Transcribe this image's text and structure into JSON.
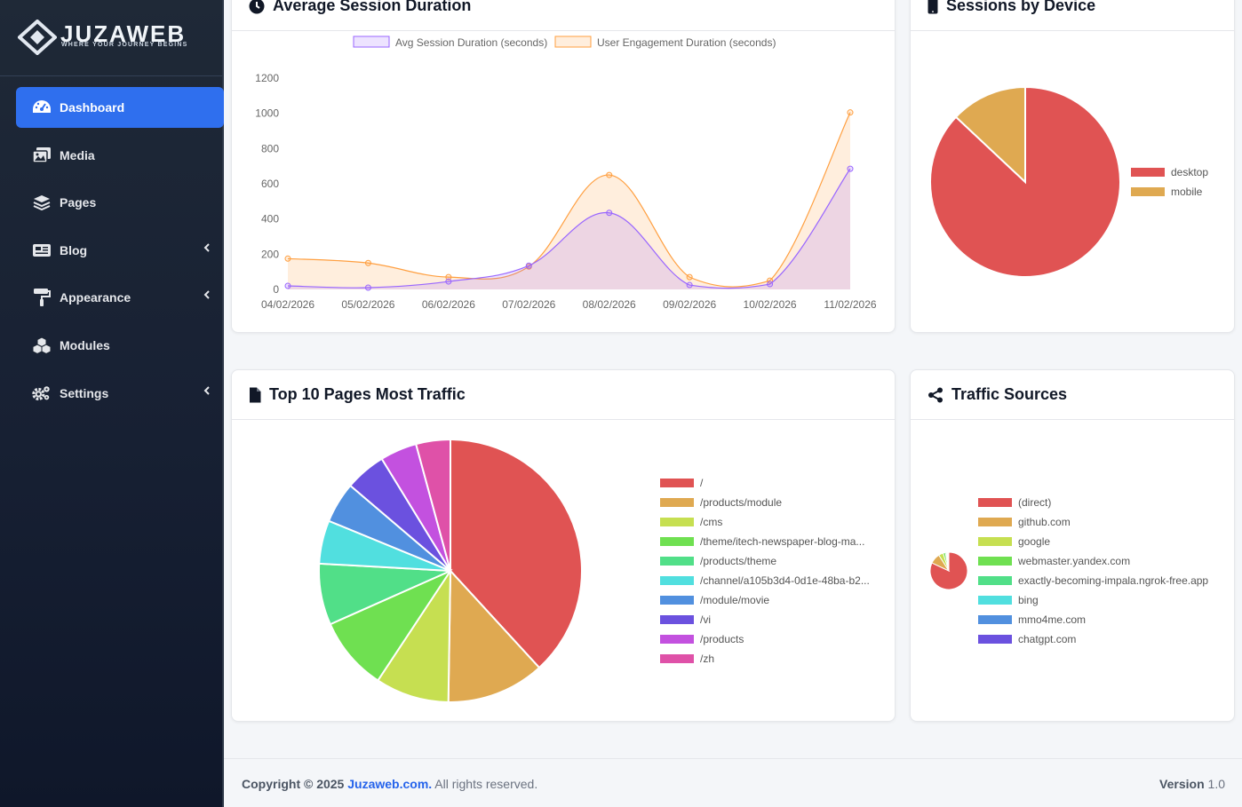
{
  "brand": {
    "name": "JUZAWEB",
    "tagline": "WHERE YOUR JOURNEY BEGINS"
  },
  "sidebar": {
    "items": [
      {
        "label": "Dashboard",
        "icon": "dashboard-icon",
        "active": true,
        "has_children": false
      },
      {
        "label": "Media",
        "icon": "media-icon",
        "active": false,
        "has_children": false
      },
      {
        "label": "Pages",
        "icon": "layers-icon",
        "active": false,
        "has_children": false
      },
      {
        "label": "Blog",
        "icon": "newspaper-icon",
        "active": false,
        "has_children": true
      },
      {
        "label": "Appearance",
        "icon": "paint-roller-icon",
        "active": false,
        "has_children": true
      },
      {
        "label": "Modules",
        "icon": "cubes-icon",
        "active": false,
        "has_children": false
      },
      {
        "label": "Settings",
        "icon": "gears-icon",
        "active": false,
        "has_children": true
      }
    ]
  },
  "cards": {
    "session": {
      "title": "Average Session Duration",
      "icon": "clock-icon"
    },
    "device": {
      "title": "Sessions by Device",
      "icon": "mobile-icon"
    },
    "top_pages": {
      "title": "Top 10 Pages Most Traffic",
      "icon": "file-icon"
    },
    "sources": {
      "title": "Traffic Sources",
      "icon": "share-icon"
    }
  },
  "colors": {
    "accent": "#2f6fee",
    "purple": "#9966ff",
    "orange": "#ff9f40",
    "pie": [
      "#e05353",
      "#dfa951",
      "#c6df51",
      "#6fe051",
      "#51df88",
      "#51dfdf",
      "#5190df",
      "#6b51df",
      "#c351df",
      "#df51a8"
    ]
  },
  "chart_data": [
    {
      "type": "area",
      "title": "Average Session Duration",
      "categories": [
        "04/02/2026",
        "05/02/2026",
        "06/02/2026",
        "07/02/2026",
        "08/02/2026",
        "09/02/2026",
        "10/02/2026",
        "11/02/2026"
      ],
      "series": [
        {
          "name": "Avg Session Duration (seconds)",
          "values": [
            20,
            10,
            45,
            135,
            435,
            25,
            30,
            685
          ]
        },
        {
          "name": "User Engagement Duration (seconds)",
          "values": [
            175,
            150,
            70,
            130,
            650,
            70,
            50,
            1005
          ]
        }
      ],
      "ylim": [
        0,
        1200
      ],
      "yticks": [
        "1200",
        "1000",
        "800",
        "600",
        "400",
        "200",
        "0"
      ],
      "legend": "top"
    },
    {
      "type": "pie",
      "title": "Sessions by Device",
      "labels": [
        "desktop",
        "mobile"
      ],
      "values": [
        87,
        13
      ],
      "legend": "right"
    },
    {
      "type": "pie",
      "title": "Top 10 Pages Most Traffic",
      "labels": [
        "/",
        "/products/module",
        "/cms",
        "/theme/itech-newspaper-blog-ma...",
        "/products/theme",
        "/channel/a105b3d4-0d1e-48ba-b2...",
        "/module/movie",
        "/vi",
        "/products",
        "/zh"
      ],
      "values": [
        38,
        12,
        9,
        9,
        7.5,
        5.3,
        5,
        5,
        4.5,
        4.2
      ],
      "legend": "right"
    },
    {
      "type": "pie",
      "title": "Traffic Sources",
      "labels": [
        "(direct)",
        "github.com",
        "google",
        "webmaster.yandex.com",
        "exactly-becoming-impala.ngrok-free.app",
        "bing",
        "mmo4me.com",
        "chatgpt.com"
      ],
      "values": [
        82,
        9,
        4,
        2,
        1,
        0.8,
        0.7,
        0.5
      ],
      "legend": "right"
    }
  ],
  "footer": {
    "copyright_prefix": "Copyright © 2025",
    "site_link": "Juzaweb.com.",
    "rights": "All rights reserved.",
    "version_label": "Version",
    "version": "1.0"
  }
}
